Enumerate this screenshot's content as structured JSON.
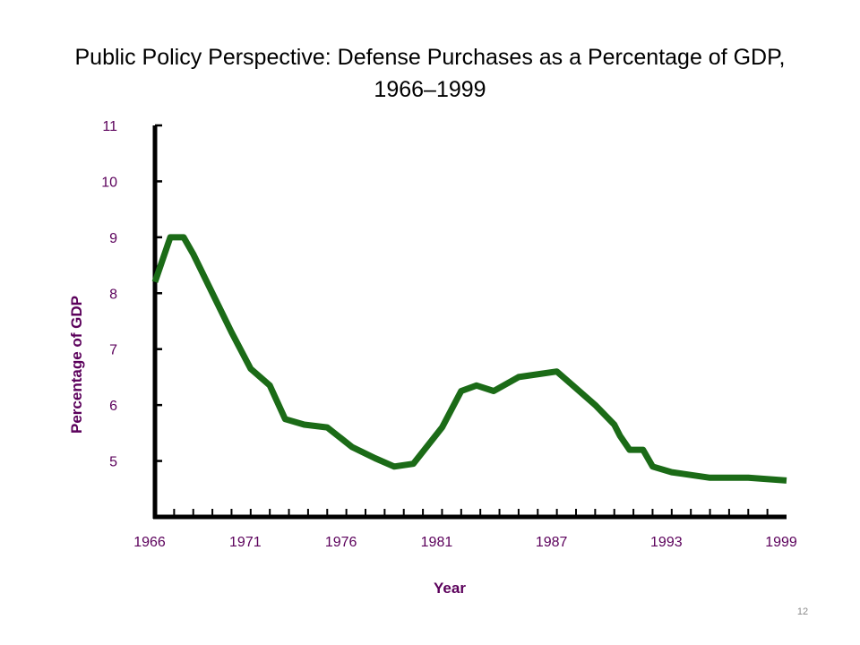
{
  "slide": {
    "title_line1": "Public Policy Perspective: Defense Purchases as a Percentage of GDP,",
    "title_line2": "1966–1999",
    "page_number": "12"
  },
  "colors": {
    "line": "#1b6b17",
    "axis": "#000000",
    "label": "#5b005b"
  },
  "chart_data": {
    "type": "line",
    "title": "Public Policy Perspective: Defense Purchases as a Percentage of GDP, 1966–1999",
    "xlabel": "Year",
    "ylabel": "Percentage of GDP",
    "xlim": [
      1966,
      1999
    ],
    "ylim": [
      4,
      11
    ],
    "x_tick_labels": [
      "1966",
      "1971",
      "1976",
      "1981",
      "1987",
      "1993",
      "1999"
    ],
    "y_tick_labels": [
      "5",
      "6",
      "7",
      "8",
      "9",
      "10",
      "11"
    ],
    "grid": false,
    "legend": "none",
    "series": [
      {
        "x": [
          1966,
          1966.8,
          1967.5,
          1968,
          1969,
          1970,
          1971,
          1972,
          1972.8,
          1973.8,
          1975,
          1976.3,
          1977.5,
          1978.5,
          1979.5,
          1981,
          1982,
          1982.8,
          1983.7,
          1985,
          1987,
          1988,
          1989,
          1990,
          1990.3,
          1990.8,
          1991.5,
          1992,
          1993,
          1995,
          1997,
          1999
        ],
        "y": [
          8.2,
          9.0,
          9.0,
          8.7,
          8.0,
          7.3,
          6.65,
          6.35,
          5.75,
          5.65,
          5.6,
          5.25,
          5.05,
          4.9,
          4.95,
          5.6,
          6.25,
          6.35,
          6.25,
          6.5,
          6.6,
          6.3,
          6.0,
          5.65,
          5.45,
          5.2,
          5.2,
          4.9,
          4.8,
          4.7,
          4.7,
          4.65
        ]
      }
    ]
  }
}
